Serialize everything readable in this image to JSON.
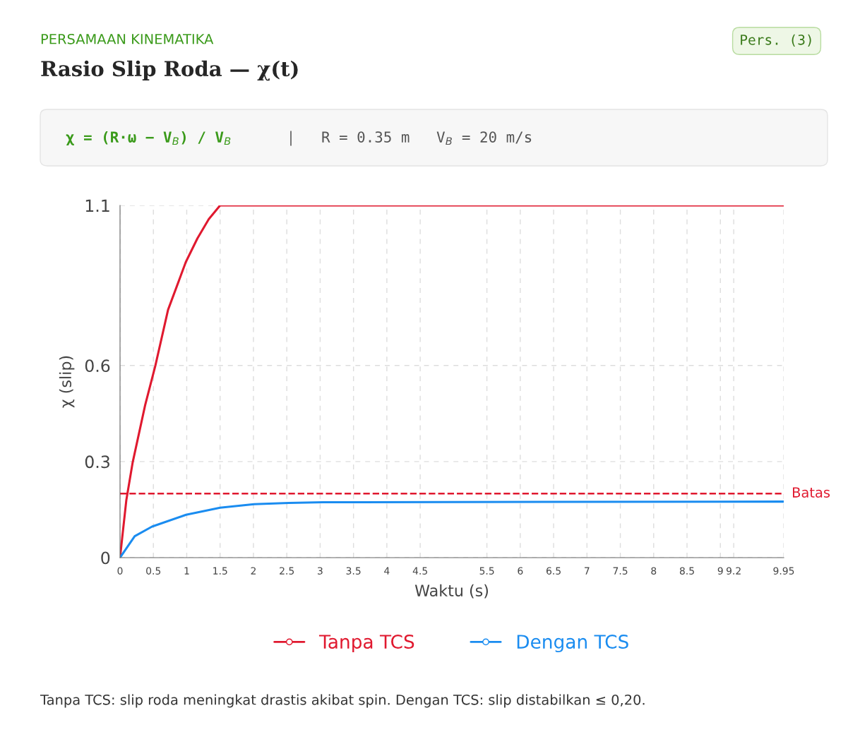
{
  "chart_data": {
    "type": "line",
    "title": "Rasio Slip Roda — χ(t)",
    "subtitle": "PERSAMAAN KINEMATIKA",
    "xlabel": "Waktu (s)",
    "ylabel": "χ (slip)",
    "annotations": [
      "Pers. (3)",
      "χ = (R·ω − V$_{B}$) / V$_{B}$",
      "|",
      "R = 0.35 m   V$_{B}$ = 20 m/s",
      "Tanpa TCS: slip roda meningkat drastis akibat spin. Dengan TCS: slip distabilkan ≤ 0,20."
    ],
    "series": [
      {
        "name": "Tanpa TCS",
        "color": "#e0192f",
        "x": [
          0,
          0.094,
          0.19,
          0.376,
          0.53,
          0.72,
          0.986,
          1.16,
          1.33,
          1.5,
          9.95
        ],
        "values": [
          0,
          0.179,
          0.298,
          0.476,
          0.6,
          0.774,
          0.923,
          0.997,
          1.057,
          1.1,
          1.1
        ]
      },
      {
        "name": "Dengan TCS",
        "color": "#1a8cf0",
        "x": [
          0,
          0.22,
          0.48,
          0.99,
          1.5,
          2.01,
          2.53,
          3.04,
          9.95
        ],
        "values": [
          0,
          0.067,
          0.097,
          0.134,
          0.156,
          0.167,
          0.171,
          0.173,
          0.175
        ]
      }
    ],
    "xlim": [
      0,
      9.95
    ],
    "xticks": [
      0,
      0.5,
      1,
      1.5,
      2,
      2.5,
      3,
      3.5,
      4,
      4.5,
      5.5,
      6,
      6.5,
      7,
      7.5,
      8,
      8.5,
      9,
      9.2,
      9.95
    ],
    "ylim": [
      0,
      1.1
    ],
    "yticks": [
      0,
      0.3,
      0.6,
      1.1
    ],
    "ref_lines": [
      {
        "axis": "y",
        "value": 0.2,
        "label": "Batas",
        "color": "#e0192f",
        "line_style": "dashed"
      }
    ],
    "grid": true,
    "legend": "bottom",
    "line_style": "solid"
  }
}
